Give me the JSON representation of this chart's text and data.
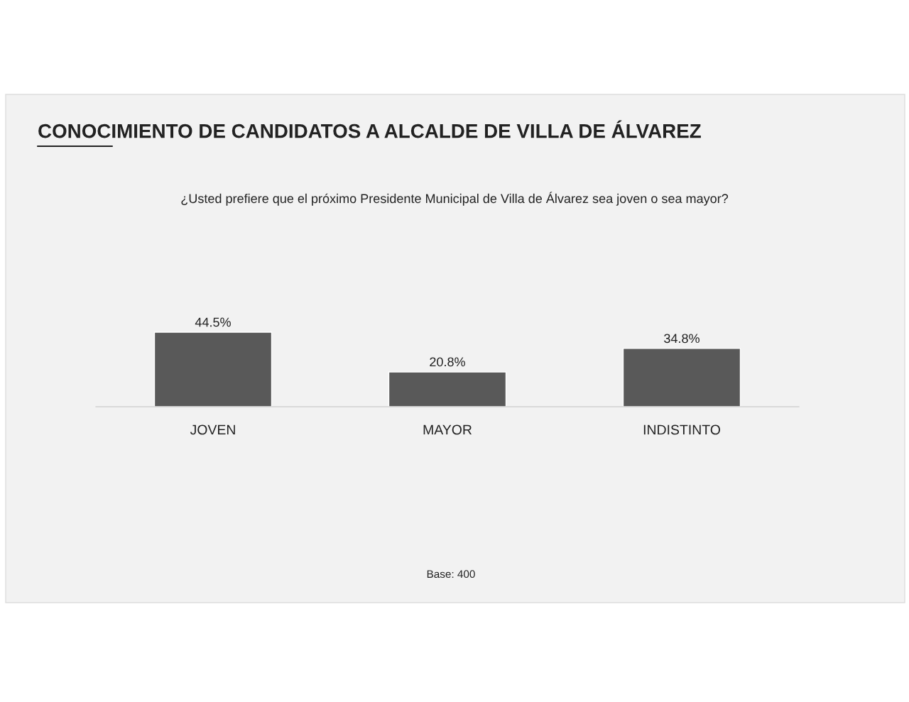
{
  "chart_data": {
    "type": "bar",
    "title": "CONOCIMIENTO DE CANDIDATOS A ALCALDE DE VILLA DE ÁLVAREZ",
    "subtitle": "¿Usted prefiere que el próximo Presidente Municipal de Villa de Álvarez sea joven o sea mayor?",
    "categories": [
      "JOVEN",
      "MAYOR",
      "INDISTINTO"
    ],
    "values": [
      44.5,
      20.8,
      34.8
    ],
    "value_labels": [
      "44.5%",
      "20.8%",
      "34.8%"
    ],
    "color": "#595959",
    "annotations": [
      "Base: 400"
    ],
    "grid": false,
    "legend": false
  }
}
